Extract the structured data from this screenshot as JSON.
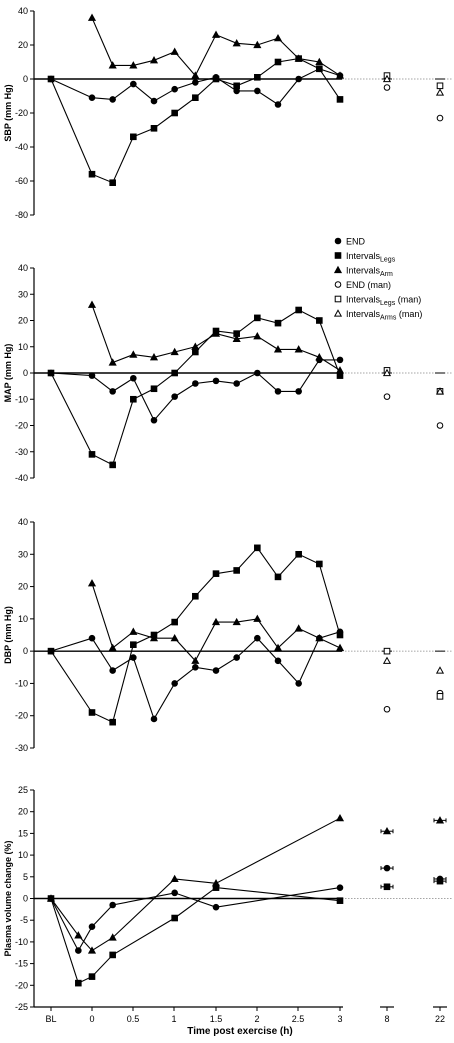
{
  "chart_data": {
    "type": "line",
    "xlabel": "Time post exercise (h)",
    "x_tick_labels": [
      "BL",
      "0",
      "0.5",
      "1",
      "1.5",
      "2",
      "2.5",
      "3",
      "8",
      "22"
    ],
    "legend": [
      {
        "main": "END",
        "sub": "",
        "suffix": "",
        "marker": "circle",
        "filled": true
      },
      {
        "main": "Intervals",
        "sub": "Legs",
        "suffix": "",
        "marker": "square",
        "filled": true
      },
      {
        "main": "Intervals",
        "sub": "Arm",
        "suffix": "",
        "marker": "triangle",
        "filled": true
      },
      {
        "main": "END (man)",
        "sub": "",
        "suffix": "",
        "marker": "circle",
        "filled": false
      },
      {
        "main": "Intervals",
        "sub": "Legs",
        "suffix": " (man)",
        "marker": "square",
        "filled": false
      },
      {
        "main": "Intervals",
        "sub": "Arms",
        "suffix": " (man)",
        "marker": "triangle",
        "filled": false
      }
    ],
    "panels": [
      {
        "ylabel": "SBP (mm Hg)",
        "ylim": [
          -80,
          40
        ],
        "yticks": [
          40,
          20,
          0,
          -20,
          -40,
          -60,
          -80
        ],
        "series": [
          {
            "marker": "circle",
            "filled": true,
            "points": [
              [
                -0.75,
                0
              ],
              [
                0,
                -11
              ],
              [
                0.25,
                -12
              ],
              [
                0.5,
                -3
              ],
              [
                0.75,
                -13
              ],
              [
                1,
                -6
              ],
              [
                1.25,
                -2
              ],
              [
                1.5,
                1
              ],
              [
                1.75,
                -7
              ],
              [
                2,
                -7
              ],
              [
                2.25,
                -15
              ],
              [
                2.5,
                0
              ],
              [
                2.75,
                6
              ],
              [
                3,
                2
              ]
            ]
          },
          {
            "marker": "square",
            "filled": true,
            "points": [
              [
                -0.75,
                0
              ],
              [
                0,
                -56
              ],
              [
                0.25,
                -61
              ],
              [
                0.5,
                -34
              ],
              [
                0.75,
                -29
              ],
              [
                1,
                -20
              ],
              [
                1.25,
                -11
              ],
              [
                1.5,
                0
              ],
              [
                1.75,
                -4
              ],
              [
                2,
                1
              ],
              [
                2.25,
                10
              ],
              [
                2.5,
                12
              ],
              [
                2.75,
                6
              ],
              [
                3,
                -12
              ]
            ]
          },
          {
            "marker": "triangle",
            "filled": true,
            "points": [
              [
                0,
                36
              ],
              [
                0.25,
                8
              ],
              [
                0.5,
                8
              ],
              [
                0.75,
                11
              ],
              [
                1,
                16
              ],
              [
                1.25,
                2
              ],
              [
                1.5,
                26
              ],
              [
                1.75,
                21
              ],
              [
                2,
                20
              ],
              [
                2.25,
                24
              ],
              [
                2.5,
                12
              ],
              [
                2.75,
                10
              ],
              [
                3,
                2
              ]
            ]
          },
          {
            "marker": "circle",
            "filled": false,
            "points": [
              [
                8,
                -5
              ],
              [
                22,
                -23
              ]
            ]
          },
          {
            "marker": "square",
            "filled": false,
            "points": [
              [
                8,
                2
              ],
              [
                22,
                -4
              ]
            ]
          },
          {
            "marker": "triangle",
            "filled": false,
            "points": [
              [
                8,
                0
              ],
              [
                22,
                -8
              ]
            ]
          }
        ]
      },
      {
        "ylabel": "MAP (mm Hg)",
        "ylim": [
          -40,
          40
        ],
        "yticks": [
          40,
          30,
          20,
          10,
          0,
          -10,
          -20,
          -30,
          -40
        ],
        "series": [
          {
            "marker": "circle",
            "filled": true,
            "points": [
              [
                -0.75,
                0
              ],
              [
                0,
                -1
              ],
              [
                0.25,
                -7
              ],
              [
                0.5,
                -2
              ],
              [
                0.75,
                -18
              ],
              [
                1,
                -9
              ],
              [
                1.25,
                -4
              ],
              [
                1.5,
                -3
              ],
              [
                1.75,
                -4
              ],
              [
                2,
                0
              ],
              [
                2.25,
                -7
              ],
              [
                2.5,
                -7
              ],
              [
                2.75,
                5
              ],
              [
                3,
                5
              ]
            ]
          },
          {
            "marker": "square",
            "filled": true,
            "points": [
              [
                -0.75,
                0
              ],
              [
                0,
                -31
              ],
              [
                0.25,
                -35
              ],
              [
                0.5,
                -10
              ],
              [
                0.75,
                -6
              ],
              [
                1,
                0
              ],
              [
                1.25,
                8
              ],
              [
                1.5,
                16
              ],
              [
                1.75,
                15
              ],
              [
                2,
                21
              ],
              [
                2.25,
                19
              ],
              [
                2.5,
                24
              ],
              [
                2.75,
                20
              ],
              [
                3,
                -1
              ]
            ]
          },
          {
            "marker": "triangle",
            "filled": true,
            "points": [
              [
                0,
                26
              ],
              [
                0.25,
                4
              ],
              [
                0.5,
                7
              ],
              [
                0.75,
                6
              ],
              [
                1,
                8
              ],
              [
                1.25,
                10
              ],
              [
                1.5,
                15
              ],
              [
                1.75,
                13
              ],
              [
                2,
                14
              ],
              [
                2.25,
                9
              ],
              [
                2.5,
                9
              ],
              [
                2.75,
                6
              ],
              [
                3,
                1
              ]
            ]
          },
          {
            "marker": "circle",
            "filled": false,
            "points": [
              [
                8,
                -9
              ],
              [
                22,
                -20
              ]
            ]
          },
          {
            "marker": "square",
            "filled": false,
            "points": [
              [
                8,
                1
              ],
              [
                22,
                -7
              ]
            ]
          },
          {
            "marker": "triangle",
            "filled": false,
            "points": [
              [
                8,
                0
              ],
              [
                22,
                -7
              ]
            ]
          }
        ]
      },
      {
        "ylabel": "DBP (mm Hg)",
        "ylim": [
          -30,
          40
        ],
        "yticks": [
          40,
          30,
          20,
          10,
          0,
          -10,
          -20,
          -30
        ],
        "series": [
          {
            "marker": "circle",
            "filled": true,
            "points": [
              [
                -0.75,
                0
              ],
              [
                0,
                4
              ],
              [
                0.25,
                -6
              ],
              [
                0.5,
                -2
              ],
              [
                0.75,
                -21
              ],
              [
                1,
                -10
              ],
              [
                1.25,
                -5
              ],
              [
                1.5,
                -6
              ],
              [
                1.75,
                -2
              ],
              [
                2,
                4
              ],
              [
                2.25,
                -3
              ],
              [
                2.5,
                -10
              ],
              [
                2.75,
                4
              ],
              [
                3,
                6
              ]
            ]
          },
          {
            "marker": "square",
            "filled": true,
            "points": [
              [
                -0.75,
                0
              ],
              [
                0,
                -19
              ],
              [
                0.25,
                -22
              ],
              [
                0.5,
                2
              ],
              [
                0.75,
                5
              ],
              [
                1,
                9
              ],
              [
                1.25,
                17
              ],
              [
                1.5,
                24
              ],
              [
                1.75,
                25
              ],
              [
                2,
                32
              ],
              [
                2.25,
                23
              ],
              [
                2.5,
                30
              ],
              [
                2.75,
                27
              ],
              [
                3,
                5
              ]
            ]
          },
          {
            "marker": "triangle",
            "filled": true,
            "points": [
              [
                0,
                21
              ],
              [
                0.25,
                1
              ],
              [
                0.5,
                6
              ],
              [
                0.75,
                4
              ],
              [
                1,
                4
              ],
              [
                1.25,
                -3
              ],
              [
                1.5,
                9
              ],
              [
                1.75,
                9
              ],
              [
                2,
                10
              ],
              [
                2.25,
                1
              ],
              [
                2.5,
                7
              ],
              [
                2.75,
                4
              ],
              [
                3,
                1
              ]
            ]
          },
          {
            "marker": "circle",
            "filled": false,
            "points": [
              [
                8,
                -18
              ],
              [
                22,
                -13
              ]
            ]
          },
          {
            "marker": "square",
            "filled": false,
            "points": [
              [
                8,
                0
              ],
              [
                22,
                -14
              ]
            ]
          },
          {
            "marker": "triangle",
            "filled": false,
            "points": [
              [
                8,
                -3
              ],
              [
                22,
                -6
              ]
            ]
          }
        ]
      },
      {
        "ylabel": "Plasma volume change (%)",
        "ylim": [
          -25,
          25
        ],
        "yticks": [
          25,
          20,
          15,
          10,
          5,
          0,
          -5,
          -10,
          -15,
          -20,
          -25
        ],
        "series": [
          {
            "marker": "circle",
            "filled": true,
            "points": [
              [
                -0.75,
                0
              ],
              [
                -0.25,
                -12
              ],
              [
                0,
                -6.5
              ],
              [
                0.25,
                -1.5
              ],
              [
                1,
                1.3
              ],
              [
                1.5,
                -2
              ],
              [
                3,
                2.5
              ],
              [
                8,
                7
              ],
              [
                22,
                4.5
              ]
            ]
          },
          {
            "marker": "square",
            "filled": true,
            "points": [
              [
                -0.75,
                0
              ],
              [
                -0.25,
                -19.5
              ],
              [
                0,
                -18
              ],
              [
                0.25,
                -13
              ],
              [
                1,
                -4.5
              ],
              [
                1.5,
                2.5
              ],
              [
                3,
                -0.5
              ],
              [
                8,
                2.7
              ],
              [
                22,
                4
              ]
            ]
          },
          {
            "marker": "triangle",
            "filled": true,
            "points": [
              [
                -0.75,
                0
              ],
              [
                -0.25,
                -8.5
              ],
              [
                0,
                -12
              ],
              [
                0.25,
                -9
              ],
              [
                1,
                4.5
              ],
              [
                1.5,
                3.5
              ],
              [
                3,
                18.5
              ],
              [
                8,
                15.5
              ],
              [
                22,
                18
              ]
            ]
          }
        ]
      }
    ]
  }
}
